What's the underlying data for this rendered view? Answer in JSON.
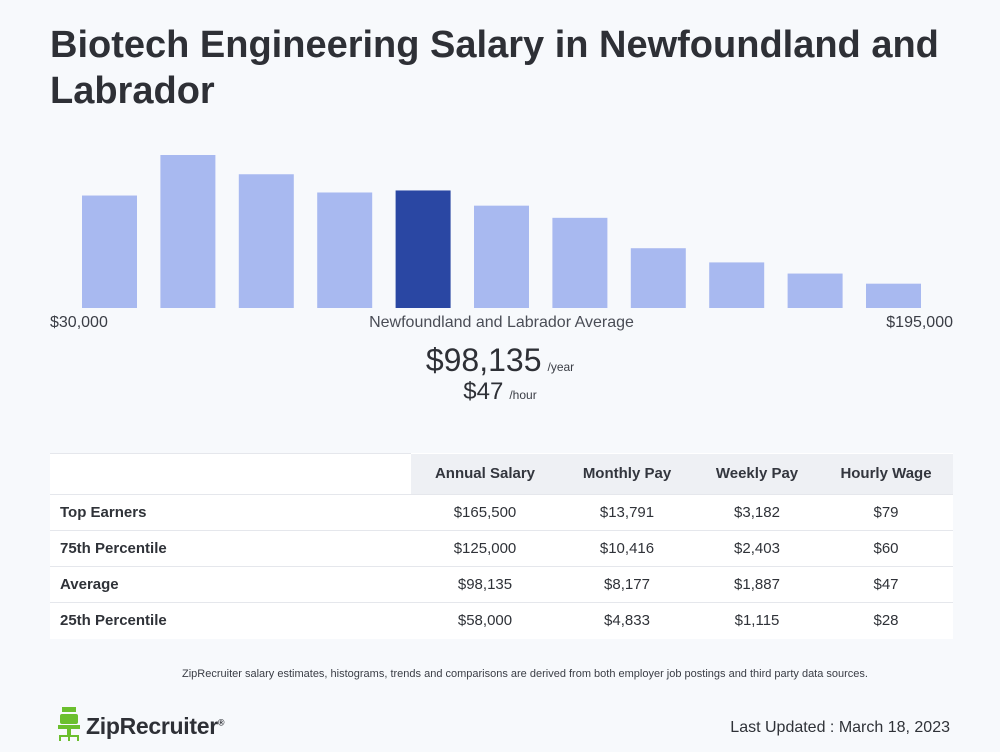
{
  "page": {
    "title": "Biotech Engineering Salary in Newfoundland and Labrador"
  },
  "chart_data": {
    "type": "bar",
    "title": "",
    "x_range_labels": {
      "min": "$30,000",
      "max": "$195,000"
    },
    "average_label": "Newfoundland and Labrador Average",
    "values": [
      111,
      151,
      132,
      114,
      116,
      101,
      89,
      59,
      45,
      34,
      24
    ],
    "highlight_index": 4,
    "colors": {
      "bar": "#a8b9f0",
      "highlight": "#2a47a3"
    },
    "ylim": [
      0,
      151
    ]
  },
  "average": {
    "year_amount": "$98,135",
    "year_unit": "/year",
    "hour_amount": "$47",
    "hour_unit": "/hour"
  },
  "table": {
    "headers": [
      "Annual Salary",
      "Monthly Pay",
      "Weekly Pay",
      "Hourly Wage"
    ],
    "rows": [
      {
        "label": "Top Earners",
        "cells": [
          "$165,500",
          "$13,791",
          "$3,182",
          "$79"
        ]
      },
      {
        "label": "75th Percentile",
        "cells": [
          "$125,000",
          "$10,416",
          "$2,403",
          "$60"
        ]
      },
      {
        "label": "Average",
        "cells": [
          "$98,135",
          "$8,177",
          "$1,887",
          "$47"
        ]
      },
      {
        "label": "25th Percentile",
        "cells": [
          "$58,000",
          "$4,833",
          "$1,115",
          "$28"
        ]
      }
    ]
  },
  "footer": {
    "disclaimer": "ZipRecruiter salary estimates, histograms, trends and comparisons are derived from both employer job postings and third party data sources.",
    "logo_text": "ZipRecruiter",
    "logo_reg": "®",
    "logo_icon": "ziprecruiter-chair-icon",
    "logo_color": "#6bbf2e",
    "last_updated": "Last Updated : March 18, 2023"
  }
}
